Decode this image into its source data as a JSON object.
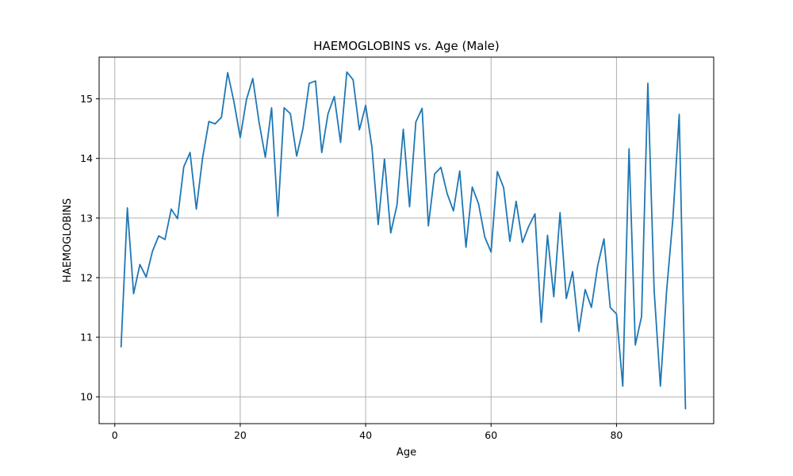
{
  "chart_data": {
    "type": "line",
    "title": "HAEMOGLOBINS vs. Age (Male)",
    "xlabel": "Age",
    "ylabel": "HAEMOGLOBINS",
    "xlim": [
      -2.5,
      95.5
    ],
    "ylim": [
      9.55,
      15.7
    ],
    "xticks": [
      0,
      20,
      40,
      60,
      80
    ],
    "yticks": [
      10,
      11,
      12,
      13,
      14,
      15
    ],
    "grid": true,
    "colors": {
      "line": "#1f77b4"
    },
    "series": [
      {
        "x": [
          1,
          2,
          3,
          4,
          5,
          6,
          7,
          8,
          9,
          10,
          11,
          12,
          13,
          14,
          15,
          16,
          17,
          18,
          19,
          20,
          21,
          22,
          23,
          24,
          25,
          26,
          27,
          28,
          29,
          30,
          31,
          32,
          33,
          34,
          35,
          36,
          37,
          38,
          39,
          40,
          41,
          42,
          43,
          44,
          45,
          46,
          47,
          48,
          49,
          50,
          51,
          52,
          53,
          54,
          55,
          56,
          57,
          58,
          59,
          60,
          61,
          62,
          63,
          64,
          65,
          66,
          67,
          68,
          69,
          70,
          71,
          72,
          73,
          74,
          75,
          76,
          77,
          78,
          79,
          80,
          81,
          82,
          83,
          84,
          85,
          86,
          87,
          88,
          89,
          90,
          91
        ],
        "values": [
          10.84,
          13.17,
          11.73,
          12.22,
          12.01,
          12.44,
          12.7,
          12.64,
          13.15,
          12.99,
          13.86,
          14.1,
          13.15,
          14.01,
          14.62,
          14.58,
          14.69,
          15.44,
          14.95,
          14.35,
          14.99,
          15.34,
          14.61,
          14.02,
          14.85,
          13.03,
          14.85,
          14.75,
          14.04,
          14.5,
          15.26,
          15.3,
          14.1,
          14.75,
          15.04,
          14.27,
          15.45,
          15.32,
          14.48,
          14.89,
          14.19,
          12.89,
          13.99,
          12.75,
          13.22,
          14.49,
          13.19,
          14.61,
          14.84,
          12.87,
          13.74,
          13.85,
          13.41,
          13.12,
          13.79,
          12.51,
          13.52,
          13.24,
          12.68,
          12.43,
          13.78,
          13.51,
          12.61,
          13.28,
          12.59,
          12.86,
          13.07,
          11.25,
          12.71,
          11.68,
          13.09,
          11.65,
          12.1,
          11.1,
          11.8,
          11.5,
          12.2,
          12.65,
          11.5,
          11.39,
          10.18,
          14.16,
          10.87,
          11.35,
          15.26,
          11.79,
          10.18,
          11.79,
          13.0,
          14.74,
          9.8
        ]
      }
    ]
  }
}
